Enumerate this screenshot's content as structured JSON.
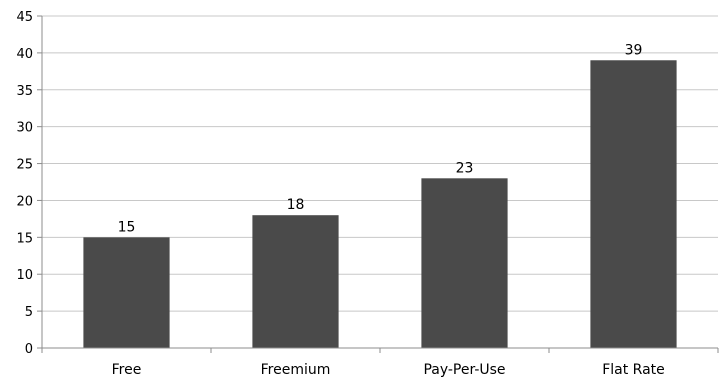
{
  "chart_data": {
    "type": "bar",
    "title": "",
    "xlabel": "",
    "ylabel": "",
    "categories": [
      "Free",
      "Freemium",
      "Pay-Per-Use",
      "Flat Rate"
    ],
    "series": [
      {
        "values": [
          15,
          18,
          23,
          39
        ]
      }
    ],
    "ylim": [
      0,
      45
    ],
    "y_ticks": [
      "0",
      "5",
      "10",
      "15",
      "20",
      "25",
      "30",
      "35",
      "40",
      "45"
    ],
    "data_labels": [
      "15",
      "18",
      "23",
      "39"
    ],
    "grid": true,
    "legend": "none",
    "colors": {
      "bar": "#4a4a4a",
      "grid": "#c8c8c8",
      "axis": "#8c8c8c"
    }
  }
}
